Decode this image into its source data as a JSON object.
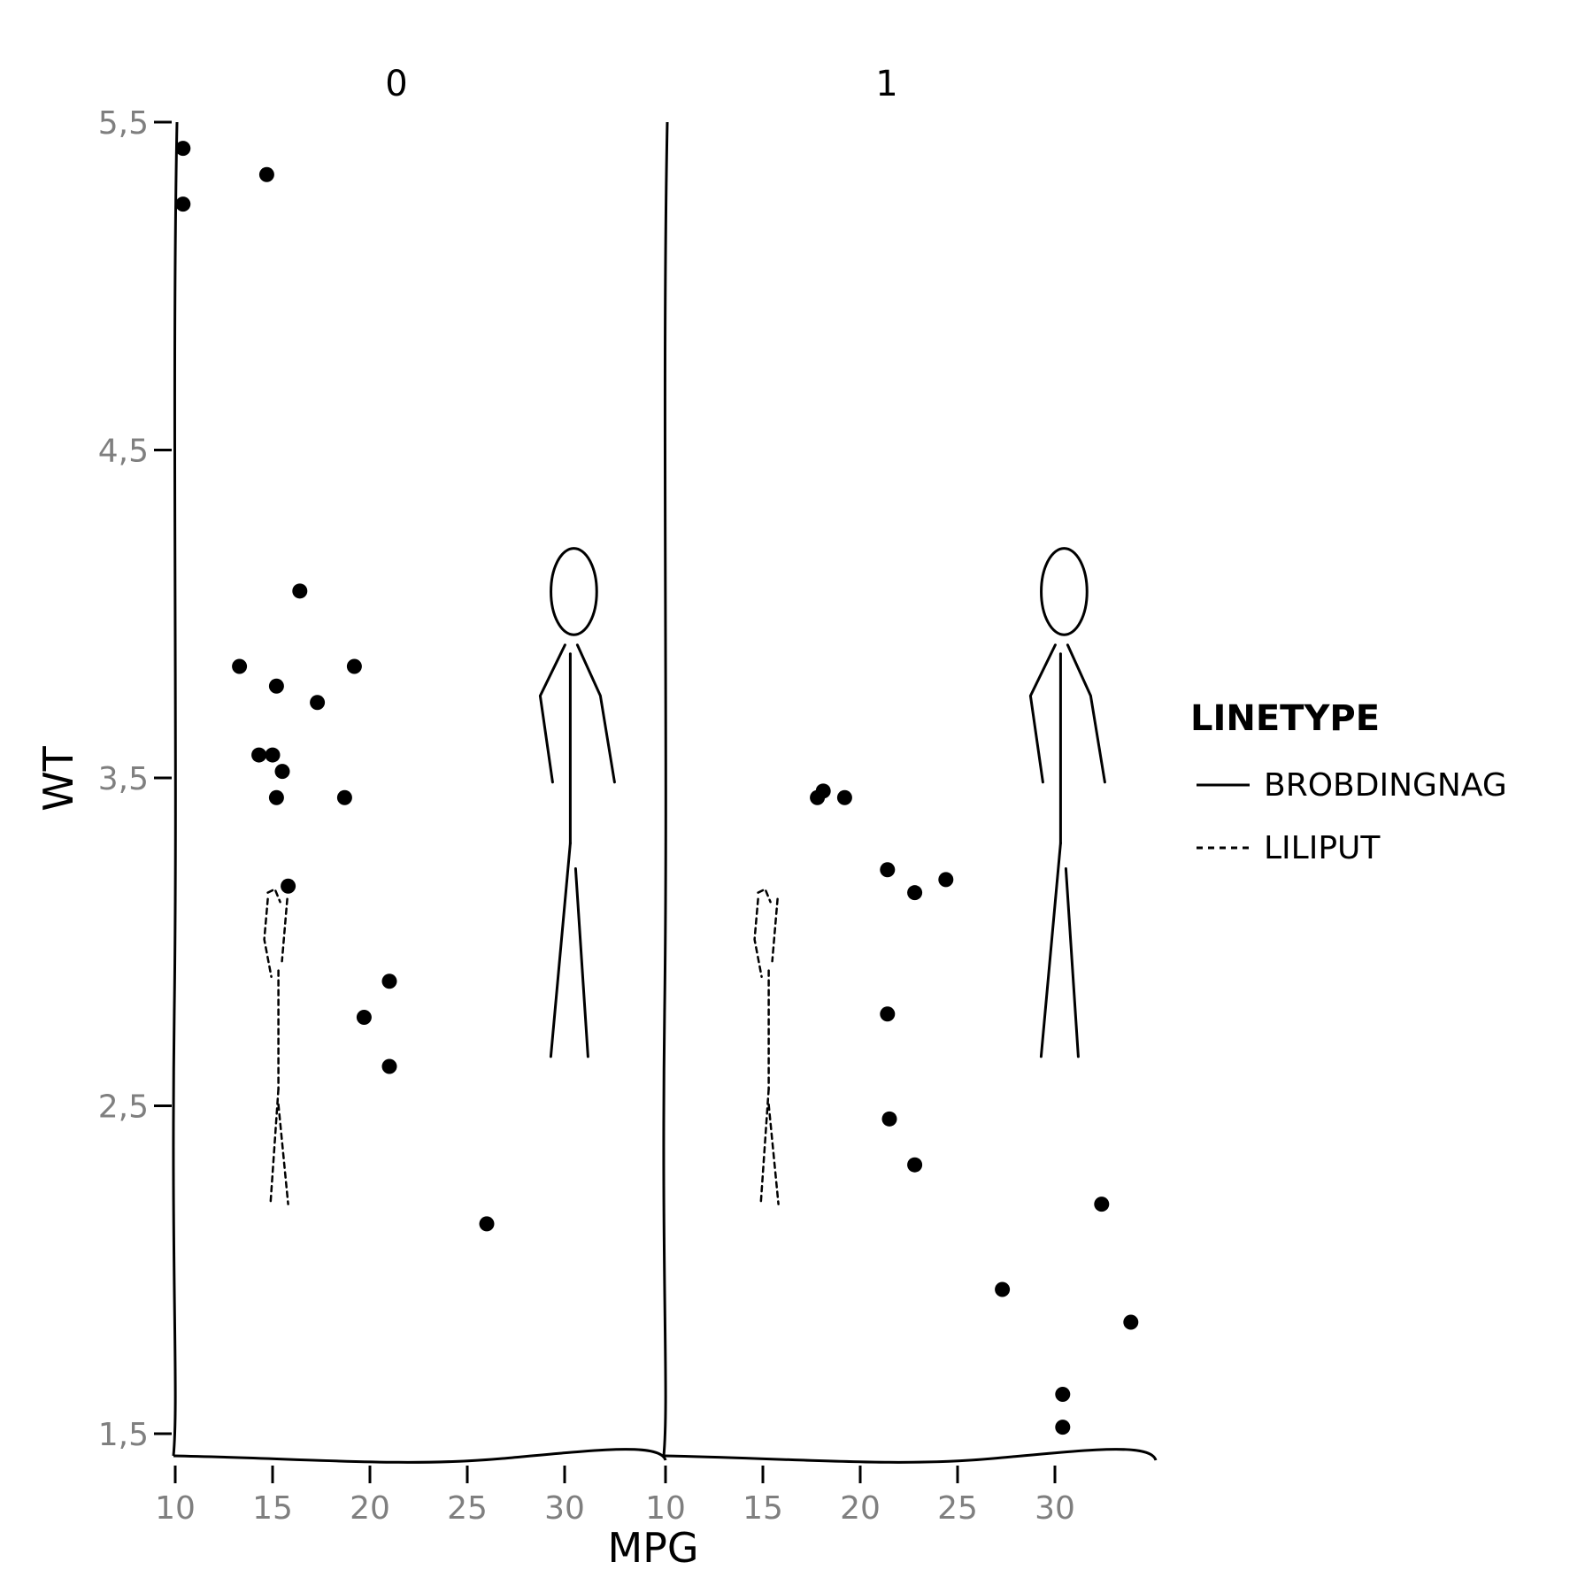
{
  "chart_data": {
    "type": "scatter",
    "xlabel": "MPG",
    "ylabel": "WT",
    "xlim": [
      10,
      34
    ],
    "ylim": [
      1.5,
      5.5
    ],
    "x_ticks": [
      10,
      15,
      20,
      25,
      30
    ],
    "x_tick_labels": [
      "10",
      "15",
      "20",
      "25",
      "30"
    ],
    "y_ticks": [
      1.5,
      2.5,
      3.5,
      4.5,
      5.5
    ],
    "y_tick_labels": [
      "1,5",
      "2,5",
      "3,5",
      "4,5",
      "5,5"
    ],
    "grid": false,
    "legend": {
      "title": "LINETYPE",
      "placement": "right",
      "entries": [
        {
          "label": "BROBDINGNAG",
          "linetype": "solid"
        },
        {
          "label": "LILIPUT",
          "linetype": "dashed"
        }
      ]
    },
    "facets": [
      {
        "label": "0",
        "points": [
          [
            10.4,
            5.42
          ],
          [
            10.4,
            5.25
          ],
          [
            14.7,
            5.34
          ],
          [
            16.4,
            4.07
          ],
          [
            13.3,
            3.84
          ],
          [
            19.2,
            3.84
          ],
          [
            15.2,
            3.78
          ],
          [
            17.3,
            3.73
          ],
          [
            14.3,
            3.57
          ],
          [
            15.0,
            3.57
          ],
          [
            15.5,
            3.52
          ],
          [
            15.2,
            3.44
          ],
          [
            18.7,
            3.44
          ],
          [
            15.8,
            3.17
          ],
          [
            21.0,
            2.88
          ],
          [
            19.7,
            2.77
          ],
          [
            21.0,
            2.62
          ],
          [
            26.0,
            2.14
          ]
        ],
        "figures": [
          {
            "linetype": "dashed",
            "x": 15.3,
            "y_bottom": 2.2,
            "y_top": 3.15
          },
          {
            "linetype": "solid",
            "x": 30.2,
            "y_bottom": 2.65,
            "y_top": 4.2
          }
        ]
      },
      {
        "label": "1",
        "points": [
          [
            17.8,
            3.44
          ],
          [
            18.1,
            3.46
          ],
          [
            19.2,
            3.44
          ],
          [
            21.4,
            3.22
          ],
          [
            22.8,
            3.15
          ],
          [
            24.4,
            3.19
          ],
          [
            21.4,
            2.78
          ],
          [
            21.5,
            2.46
          ],
          [
            22.8,
            2.32
          ],
          [
            32.4,
            2.2
          ],
          [
            27.3,
            1.94
          ],
          [
            33.9,
            1.84
          ],
          [
            30.4,
            1.62
          ],
          [
            30.4,
            1.52
          ]
        ],
        "figures": [
          {
            "linetype": "dashed",
            "x": 15.3,
            "y_bottom": 2.2,
            "y_top": 3.15
          },
          {
            "linetype": "solid",
            "x": 30.2,
            "y_bottom": 2.65,
            "y_top": 4.2
          }
        ]
      }
    ]
  }
}
